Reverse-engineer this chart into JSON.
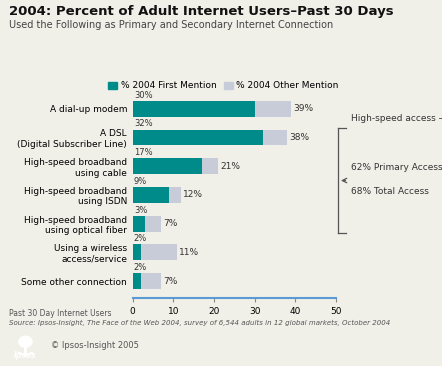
{
  "title": "2004: Percent of Adult Internet Users–Past 30 Days",
  "subtitle": "Used the Following as Primary and Secondary Internet Connection",
  "categories": [
    "A dial-up modem",
    "A DSL\n(Digital Subscriber Line)",
    "High-speed broadband\nusing cable",
    "High-speed broadband\nusing ISDN",
    "High-speed broadband\nusing optical fiber",
    "Using a wireless\naccess/service",
    "Some other connection"
  ],
  "first_mention": [
    30,
    32,
    17,
    9,
    3,
    2,
    2
  ],
  "other_mention": [
    39,
    38,
    21,
    12,
    7,
    11,
    7
  ],
  "color_first": "#008b8b",
  "color_other": "#c8ccd8",
  "legend_first": "% 2004 First Mention",
  "legend_other": "% 2004 Other Mention",
  "xlim": [
    0,
    50
  ],
  "xticks": [
    0,
    10,
    20,
    30,
    40,
    50
  ],
  "footnote1": "Past 30 Day Internet Users",
  "footnote2": "Source: Ipsos-Insight, The Face of the Web 2004, survey of 6,544 adults in 12 global markets, October 2004",
  "copyright": "© Ipsos-Insight 2005",
  "background_color": "#f0efe8"
}
